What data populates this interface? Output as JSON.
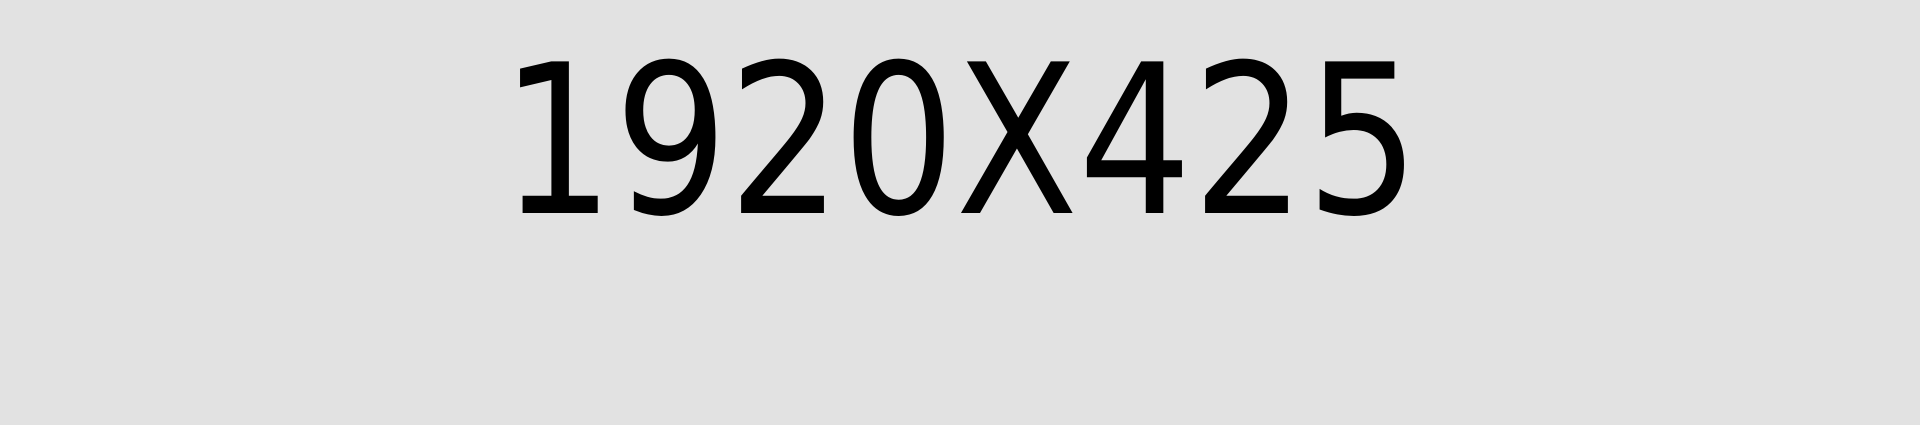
{
  "placeholder": {
    "label": "1920X425",
    "background_color": "#e2e2e2",
    "text_color": "#000000"
  }
}
